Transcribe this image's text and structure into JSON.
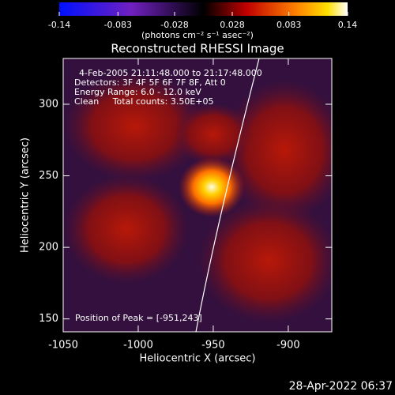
{
  "chart_data": {
    "type": "image",
    "title": "Reconstructed RHESSI Image",
    "x_label": "Heliocentric X (arcsec)",
    "y_label": "Heliocentric Y (arcsec)",
    "xlim": [
      -1050,
      -871
    ],
    "xticks": [
      -1050,
      -1000,
      -950,
      -900
    ],
    "ylim": [
      141,
      332
    ],
    "yticks": [
      150,
      200,
      250,
      300
    ],
    "colorbar": {
      "label": "(photons cm⁻² s⁻¹ asec⁻²)",
      "lim": [
        -0.14,
        0.14
      ],
      "ticks": [
        -0.14,
        -0.083,
        -0.028,
        0.028,
        0.083,
        0.14
      ]
    },
    "annotations": [
      "4-Feb-2005 21:11:48.000 to 21:17:48.000",
      "Detectors: 3F 4F 5F 6F 7F 8F, Att 0",
      "Energy Range: 6.0 - 12.0 keV",
      "Clean     Total counts: 3.50E+05"
    ],
    "peak_label": "Position of Peak = [-951,243]",
    "peak": [
      -951,
      243
    ],
    "footer": "28-Apr-2022 06:37"
  }
}
